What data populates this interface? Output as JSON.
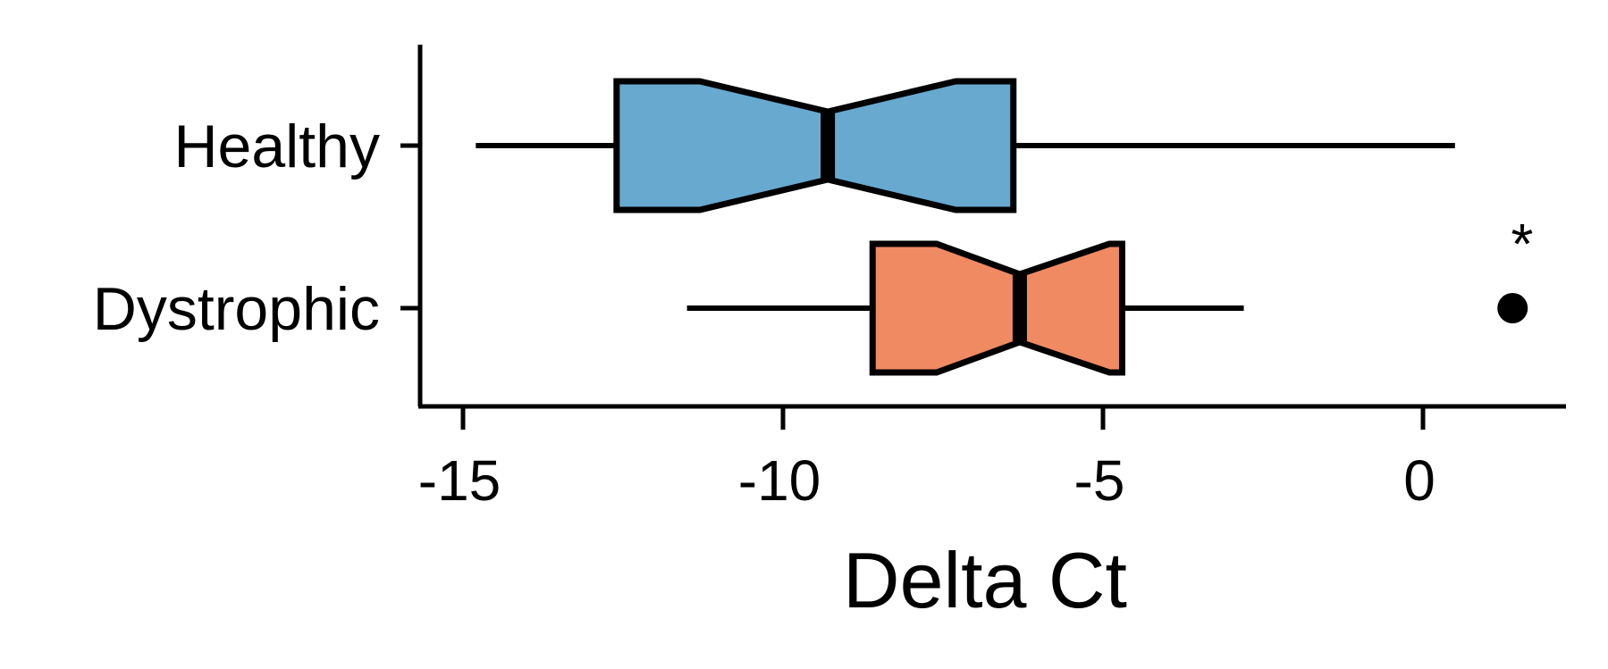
{
  "chart_data": {
    "type": "box",
    "orientation": "horizontal",
    "notched": true,
    "xlabel": "Delta Ct",
    "ylabel": "",
    "xlim": [
      -16.3,
      4.4
    ],
    "xticks": [
      -15,
      -10,
      -5,
      0
    ],
    "xtick_labels": [
      "-15",
      "-10",
      "-5",
      "0"
    ],
    "categories": [
      "Healthy",
      "Dystrophic"
    ],
    "boxes": [
      {
        "category": "Healthy",
        "color": "#67a9cf",
        "whisker_low": -14.8,
        "q1": -12.6,
        "median": -9.3,
        "q3": -6.4,
        "whisker_high": 0.5,
        "notch_low": -11.3,
        "notch_high": -7.3,
        "outliers": []
      },
      {
        "category": "Dystrophic",
        "color": "#ef8a62",
        "whisker_low": -11.5,
        "q1": -8.6,
        "median": -6.3,
        "q3": -4.7,
        "whisker_high": -2.8,
        "notch_low": -7.6,
        "notch_high": -4.9,
        "outliers": [
          1.4
        ]
      }
    ],
    "annotation": {
      "text": "*",
      "x": 1.55,
      "category": "Dystrophic"
    }
  }
}
